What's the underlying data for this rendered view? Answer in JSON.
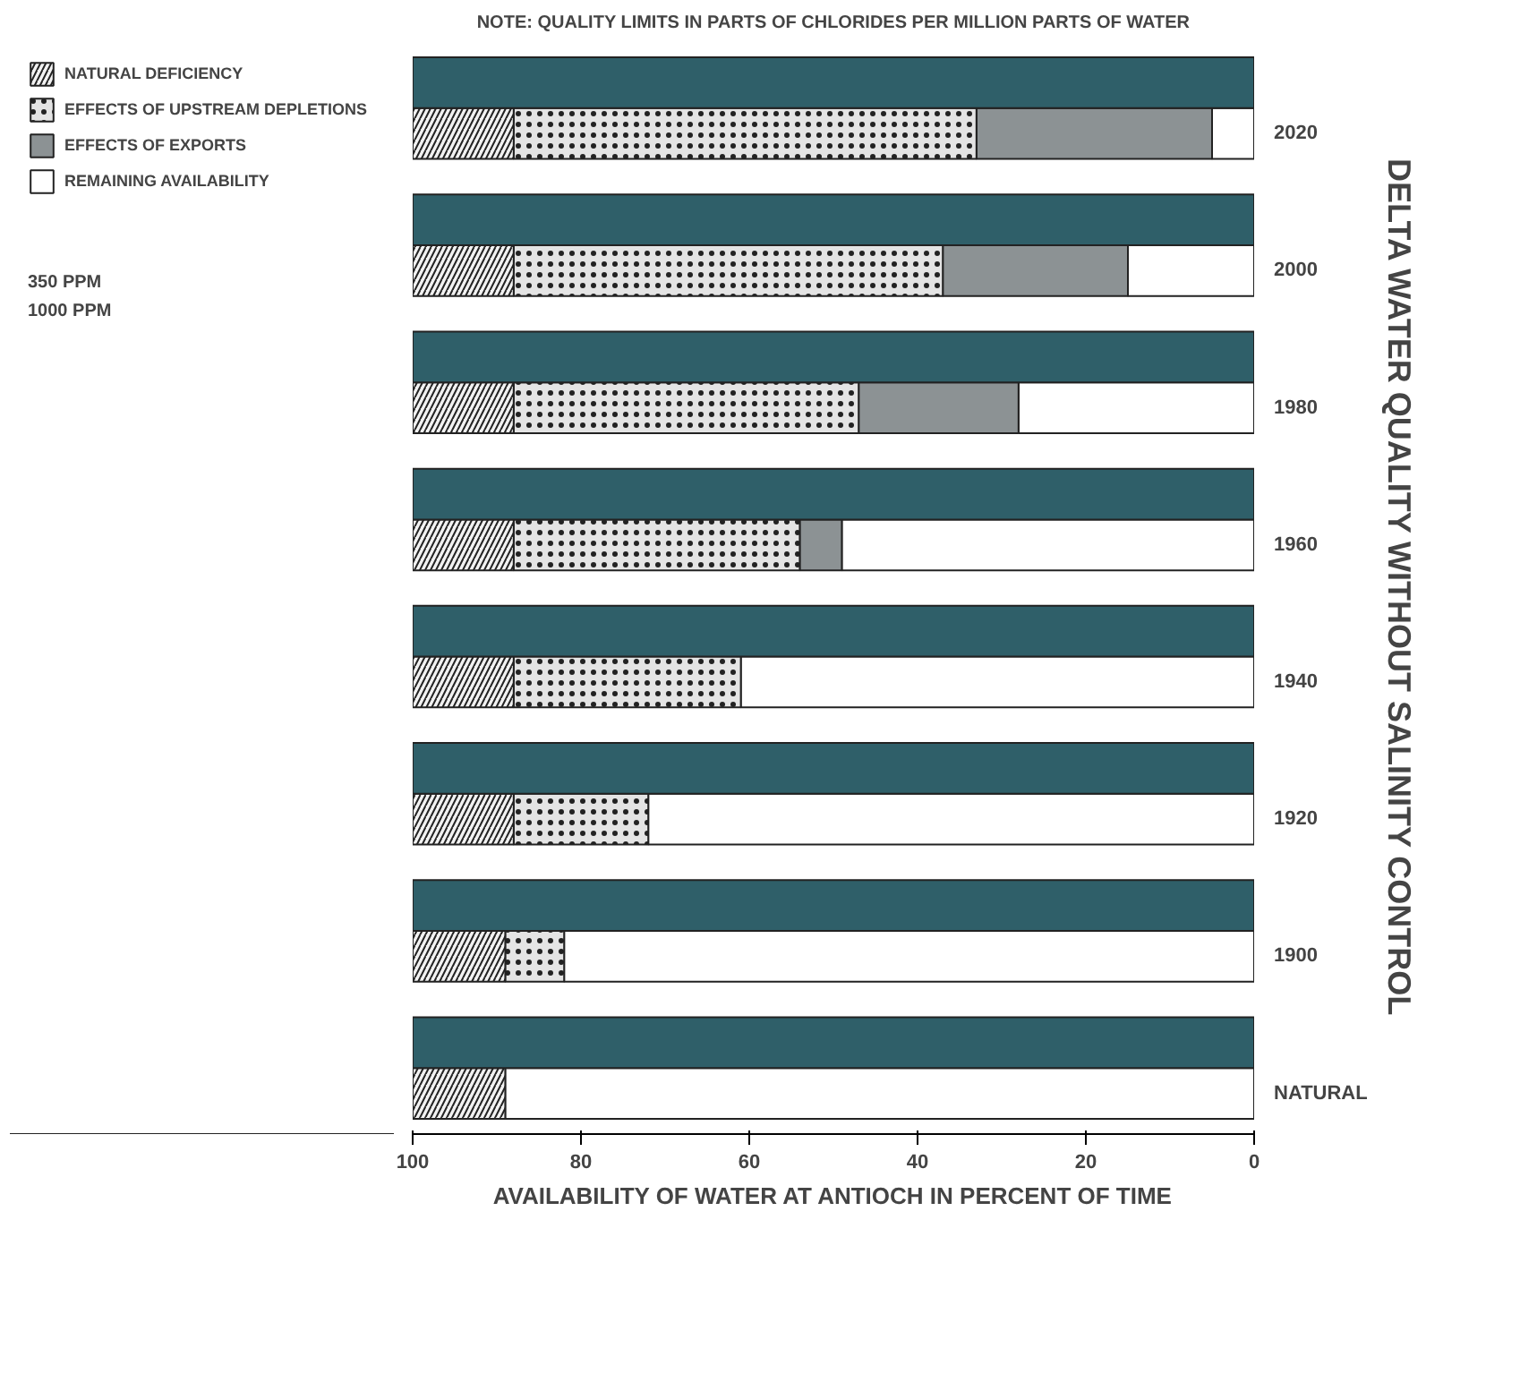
{
  "chart_data": {
    "type": "bar",
    "orientation": "horizontal",
    "stacked": true,
    "title": "DELTA WATER QUALITY WITHOUT SALINITY CONTROL",
    "xlabel": "AVAILABILITY OF WATER AT ANTIOCH IN PERCENT OF TIME",
    "categories": [
      null,
      "2020",
      null,
      "2000",
      null,
      "1980",
      null,
      "1960",
      null,
      "1940",
      null,
      "1920",
      null,
      "1900",
      null,
      "NATURAL"
    ],
    "series": [
      {
        "name": "REMAINING AVAILABILITY",
        "color": "#ffffff",
        "values": [
          null,
          5,
          null,
          15,
          null,
          28,
          null,
          49,
          null,
          61,
          null,
          72,
          null,
          82,
          null,
          89
        ]
      },
      {
        "name": "EFFECTS OF EXPORTS",
        "color": "#8c9294",
        "values": [
          null,
          28,
          null,
          22,
          null,
          19,
          null,
          5,
          null,
          0,
          null,
          0,
          null,
          0,
          null,
          0
        ]
      },
      {
        "name": "EFFECTS OF UPSTREAM DEPLETIONS",
        "color": "#e4e4e4",
        "values": [
          null,
          55,
          null,
          51,
          null,
          41,
          null,
          34,
          null,
          27,
          null,
          16,
          null,
          7,
          null,
          0
        ]
      },
      {
        "name": "NATURAL DEFICIENCY",
        "color": "#f2f2f2",
        "values": [
          null,
          12,
          null,
          12,
          null,
          12,
          null,
          12,
          null,
          12,
          null,
          12,
          null,
          11,
          null,
          11
        ]
      },
      {
        "color": "#2f5f69",
        "values": [
          100,
          null,
          100,
          null,
          100,
          null,
          100,
          null,
          100,
          null,
          100,
          null,
          100,
          null,
          100,
          null
        ]
      }
    ],
    "xlim": [
      100,
      0
    ],
    "xticks": [
      100,
      80,
      60,
      40,
      20,
      0
    ],
    "grid": false,
    "legend": "left",
    "annotations": [
      "NOTE: QUALITY LIMITS IN PARTS OF CHLORIDES PER MILLION PARTS OF WATER",
      "350 PPM",
      "1000 PPM"
    ]
  }
}
